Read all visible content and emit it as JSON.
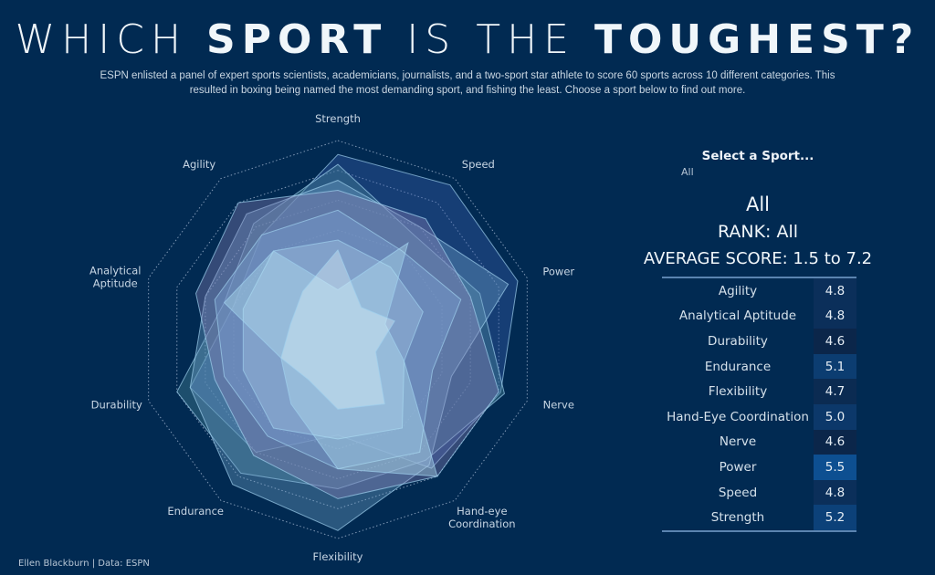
{
  "title": {
    "part1": "WHICH ",
    "bold1": "SPORT",
    "part2": " IS THE ",
    "bold2": "TOUGHEST?"
  },
  "subtitle": "ESPN enlisted a panel of expert sports scientists, academicians, journalists, and a two-sport star athlete to score 60 sports across 10 different categories. This resulted in  boxing being named  the most demanding sport, and fishing the least. Choose a sport below to find out more.",
  "credit": "Ellen Blackburn | Data: ESPN",
  "filter": {
    "label": "Select a Sport...",
    "value": "All"
  },
  "summary": {
    "sport": "All",
    "rank": "RANK: All",
    "average": "AVERAGE SCORE: 1.5 to 7.2"
  },
  "table": [
    {
      "category": "Agility",
      "score": "4.8"
    },
    {
      "category": "Analytical Aptitude",
      "score": "4.8"
    },
    {
      "category": "Durability",
      "score": "4.6"
    },
    {
      "category": "Endurance",
      "score": "5.1"
    },
    {
      "category": "Flexibility",
      "score": "4.7"
    },
    {
      "category": "Hand-Eye Coordination",
      "score": "5.0"
    },
    {
      "category": "Nerve",
      "score": "4.6"
    },
    {
      "category": "Power",
      "score": "5.5"
    },
    {
      "category": "Speed",
      "score": "4.8"
    },
    {
      "category": "Strength",
      "score": "5.2"
    }
  ],
  "colors": {
    "background": "#012a52",
    "cell_low": "#0b2a50",
    "cell_high": "#0d4f91",
    "polygon_fill": "#b8e4f4"
  },
  "chart_data": {
    "type": "radar",
    "axes": [
      "Strength",
      "Speed",
      "Power",
      "Nerve",
      "Hand-eye Coordination",
      "Flexibility",
      "Endurance",
      "Durability",
      "Analytical Aptitude",
      "Agility"
    ],
    "rlim": [
      0,
      10
    ],
    "grid": true,
    "series": [
      {
        "values": [
          9.3,
          9.6,
          9.5,
          8.6,
          8.0,
          4.8,
          7.0,
          7.8,
          5.5,
          6.5
        ]
      },
      {
        "values": [
          8.8,
          6.5,
          7.5,
          8.8,
          7.5,
          7.5,
          8.3,
          8.5,
          6.0,
          7.2
        ]
      },
      {
        "values": [
          8.0,
          7.0,
          9.0,
          6.0,
          7.8,
          9.6,
          9.0,
          7.8,
          7.0,
          7.8
        ]
      },
      {
        "values": [
          7.5,
          7.5,
          7.0,
          8.5,
          8.5,
          8.0,
          7.2,
          6.5,
          7.5,
          8.5
        ]
      },
      {
        "values": [
          6.5,
          5.5,
          6.5,
          5.0,
          7.0,
          6.5,
          6.0,
          6.0,
          6.5,
          6.5
        ]
      },
      {
        "values": [
          5.0,
          4.5,
          4.5,
          3.5,
          5.5,
          5.0,
          5.5,
          5.0,
          5.0,
          5.5
        ]
      },
      {
        "values": [
          2.5,
          6.0,
          2.5,
          3.5,
          8.5,
          6.5,
          4.0,
          3.0,
          6.0,
          5.5
        ]
      },
      {
        "values": [
          4.5,
          2.0,
          3.0,
          2.0,
          4.0,
          3.5,
          2.5,
          3.0,
          2.5,
          3.0
        ]
      }
    ]
  }
}
